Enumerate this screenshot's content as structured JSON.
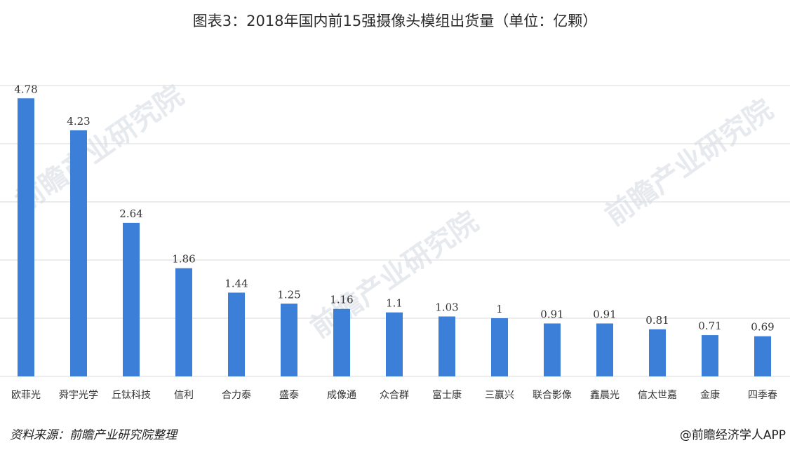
{
  "chart_data": {
    "type": "bar",
    "title": "图表3：2018年国内前15强摄像头模组出货量（单位：亿颗）",
    "categories": [
      "欧菲光",
      "舜宇光学",
      "丘钛科技",
      "信利",
      "合力泰",
      "盛泰",
      "成像通",
      "众合群",
      "富士康",
      "三赢兴",
      "联合影像",
      "鑫晨光",
      "信太世嘉",
      "金康",
      "四季春"
    ],
    "values": [
      4.78,
      4.23,
      2.64,
      1.86,
      1.44,
      1.25,
      1.16,
      1.1,
      1.03,
      1,
      0.91,
      0.91,
      0.81,
      0.71,
      0.69
    ],
    "value_labels": [
      "4.78",
      "4.23",
      "2.64",
      "1.86",
      "1.44",
      "1.25",
      "1.16",
      "1.1",
      "1.03",
      "1",
      "0.91",
      "0.91",
      "0.81",
      "0.71",
      "0.69"
    ],
    "ylim": [
      0,
      5
    ],
    "grid": true,
    "bar_color": "#3b7fd9",
    "grid_color": "#d9d9d9"
  },
  "footer": {
    "source": "资料来源：前瞻产业研究院整理",
    "brand": "@前瞻经济学人APP"
  },
  "watermark": "前瞻产业研究院"
}
